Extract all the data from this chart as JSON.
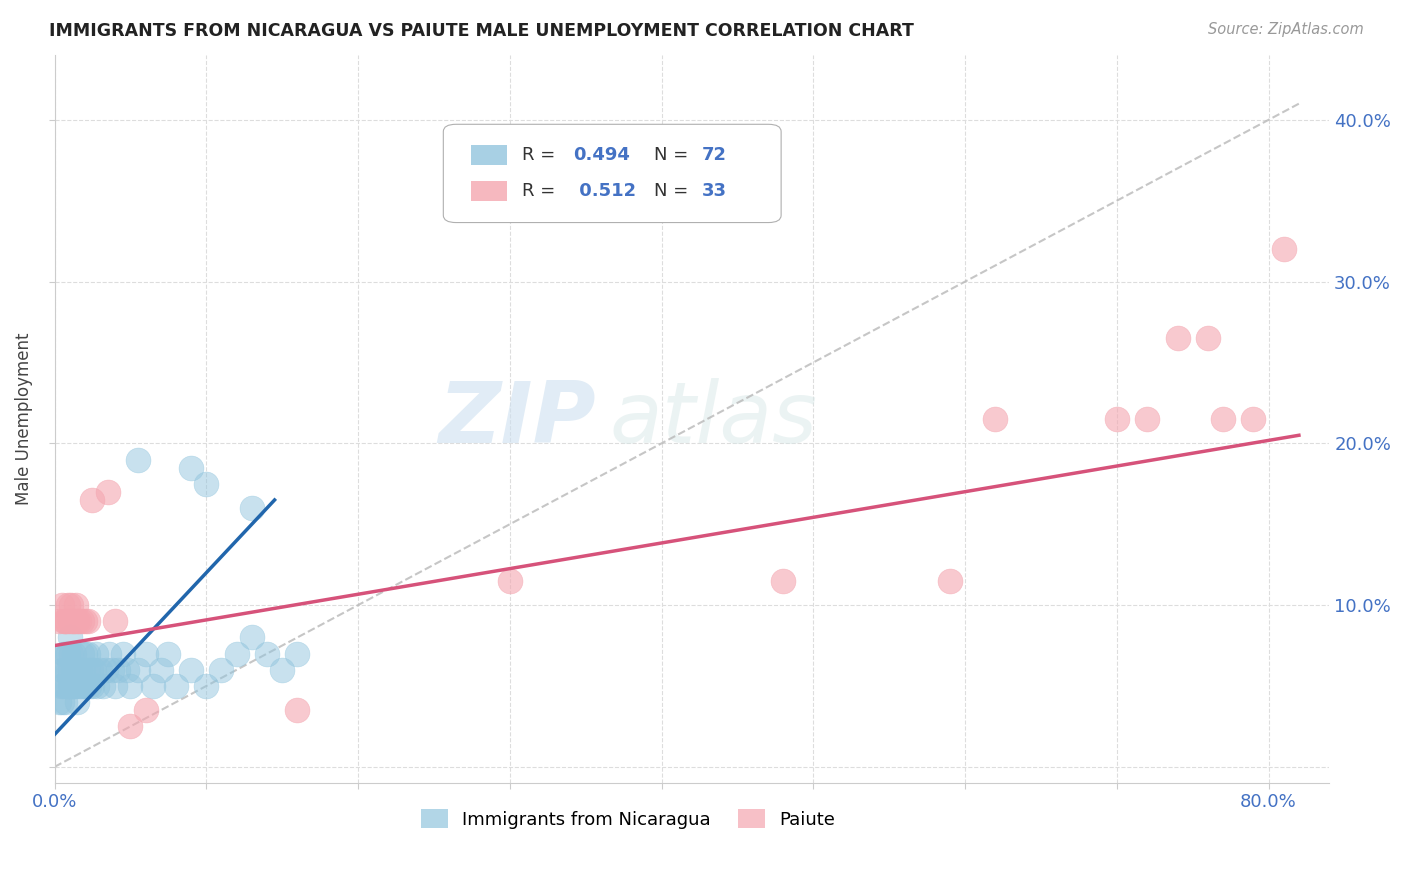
{
  "title": "IMMIGRANTS FROM NICARAGUA VS PAIUTE MALE UNEMPLOYMENT CORRELATION CHART",
  "source": "Source: ZipAtlas.com",
  "ylabel": "Male Unemployment",
  "xlim": [
    0.0,
    0.84
  ],
  "ylim": [
    -0.01,
    0.44
  ],
  "xticks": [
    0.0,
    0.1,
    0.2,
    0.3,
    0.4,
    0.5,
    0.6,
    0.7,
    0.8
  ],
  "xticklabels": [
    "0.0%",
    "",
    "",
    "",
    "",
    "",
    "",
    "",
    "80.0%"
  ],
  "yticks": [
    0.0,
    0.1,
    0.2,
    0.3,
    0.4
  ],
  "yticklabels_right": [
    "",
    "10.0%",
    "20.0%",
    "30.0%",
    "40.0%"
  ],
  "blue_R": "0.494",
  "blue_N": "72",
  "pink_R": "0.512",
  "pink_N": "33",
  "blue_color": "#92c5de",
  "pink_color": "#f4a6b0",
  "trendline_blue_color": "#2166ac",
  "trendline_pink_color": "#d6527a",
  "trendline_dashed_color": "#b8b8b8",
  "background_color": "#ffffff",
  "grid_color": "#dddddd",
  "watermark_zip": "ZIP",
  "watermark_atlas": "atlas",
  "tick_color": "#4472c4",
  "legend_text_color": "#333333",
  "legend_value_color": "#4472c4",
  "blue_x": [
    0.003,
    0.004,
    0.005,
    0.005,
    0.006,
    0.006,
    0.007,
    0.007,
    0.007,
    0.008,
    0.008,
    0.008,
    0.009,
    0.009,
    0.009,
    0.01,
    0.01,
    0.01,
    0.011,
    0.011,
    0.012,
    0.012,
    0.013,
    0.013,
    0.014,
    0.014,
    0.015,
    0.015,
    0.016,
    0.017,
    0.018,
    0.018,
    0.019,
    0.02,
    0.02,
    0.021,
    0.022,
    0.022,
    0.023,
    0.024,
    0.025,
    0.026,
    0.027,
    0.028,
    0.03,
    0.032,
    0.034,
    0.036,
    0.038,
    0.04,
    0.042,
    0.045,
    0.048,
    0.05,
    0.055,
    0.06,
    0.065,
    0.07,
    0.075,
    0.08,
    0.09,
    0.1,
    0.11,
    0.12,
    0.13,
    0.14,
    0.15,
    0.16,
    0.055,
    0.09,
    0.1,
    0.13
  ],
  "blue_y": [
    0.04,
    0.05,
    0.04,
    0.06,
    0.05,
    0.07,
    0.04,
    0.06,
    0.07,
    0.05,
    0.06,
    0.07,
    0.05,
    0.06,
    0.07,
    0.05,
    0.06,
    0.08,
    0.05,
    0.07,
    0.05,
    0.06,
    0.05,
    0.07,
    0.05,
    0.06,
    0.04,
    0.06,
    0.05,
    0.06,
    0.05,
    0.07,
    0.06,
    0.05,
    0.07,
    0.05,
    0.06,
    0.07,
    0.05,
    0.06,
    0.05,
    0.06,
    0.07,
    0.05,
    0.06,
    0.05,
    0.06,
    0.07,
    0.06,
    0.05,
    0.06,
    0.07,
    0.06,
    0.05,
    0.06,
    0.07,
    0.05,
    0.06,
    0.07,
    0.05,
    0.06,
    0.05,
    0.06,
    0.07,
    0.08,
    0.07,
    0.06,
    0.07,
    0.19,
    0.185,
    0.175,
    0.16
  ],
  "pink_x": [
    0.003,
    0.005,
    0.006,
    0.007,
    0.008,
    0.009,
    0.01,
    0.011,
    0.012,
    0.013,
    0.014,
    0.015,
    0.016,
    0.018,
    0.02,
    0.022,
    0.025,
    0.035,
    0.04,
    0.05,
    0.06,
    0.16,
    0.3,
    0.48,
    0.59,
    0.62,
    0.7,
    0.72,
    0.74,
    0.76,
    0.77,
    0.79,
    0.81
  ],
  "pink_y": [
    0.09,
    0.1,
    0.09,
    0.09,
    0.09,
    0.1,
    0.09,
    0.1,
    0.09,
    0.09,
    0.1,
    0.09,
    0.09,
    0.09,
    0.09,
    0.09,
    0.165,
    0.17,
    0.09,
    0.025,
    0.035,
    0.035,
    0.115,
    0.115,
    0.115,
    0.215,
    0.215,
    0.215,
    0.265,
    0.265,
    0.215,
    0.215,
    0.32
  ],
  "blue_trendline_x": [
    0.0,
    0.145
  ],
  "blue_trendline_y": [
    0.02,
    0.165
  ],
  "pink_trendline_x": [
    0.0,
    0.82
  ],
  "pink_trendline_y": [
    0.075,
    0.205
  ],
  "dash_trendline_x": [
    0.0,
    0.82
  ],
  "dash_trendline_y": [
    0.0,
    0.41
  ]
}
